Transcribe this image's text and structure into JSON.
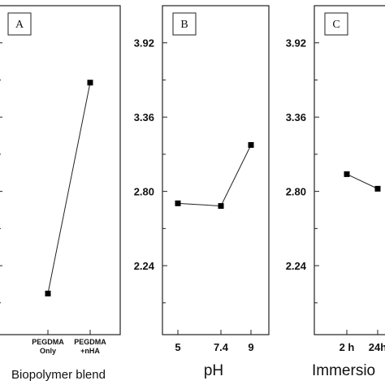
{
  "chart_data": [
    {
      "type": "line",
      "panel_label": "A",
      "xlabel": "Biopolymer blend",
      "categories": [
        [
          "PEGDMA",
          "Only"
        ],
        [
          "PEGDMA",
          "+nHA"
        ]
      ],
      "values": [
        2.03,
        3.62
      ],
      "ylim": [
        1.72,
        4.2
      ],
      "yticks": [
        2.24,
        2.8,
        3.36,
        3.92
      ],
      "ytick_labels": []
    },
    {
      "type": "line",
      "panel_label": "B",
      "xlabel": "pH",
      "categories": [
        "5",
        "7.4",
        "9"
      ],
      "values": [
        2.71,
        2.69,
        3.15
      ],
      "ylim": [
        1.72,
        4.2
      ],
      "yticks": [
        2.24,
        2.8,
        3.36,
        3.92
      ],
      "ytick_labels": [
        "2.24",
        "2.80",
        "3.36",
        "3.92"
      ]
    },
    {
      "type": "line",
      "panel_label": "C",
      "xlabel": "Immersio",
      "categories": [
        "2 h",
        "24h"
      ],
      "values": [
        2.93,
        2.82
      ],
      "ylim": [
        1.72,
        4.2
      ],
      "yticks": [
        2.24,
        2.8,
        3.36,
        3.92
      ],
      "ytick_labels": [
        "2.24",
        "2.80",
        "3.36",
        "3.92"
      ]
    }
  ]
}
